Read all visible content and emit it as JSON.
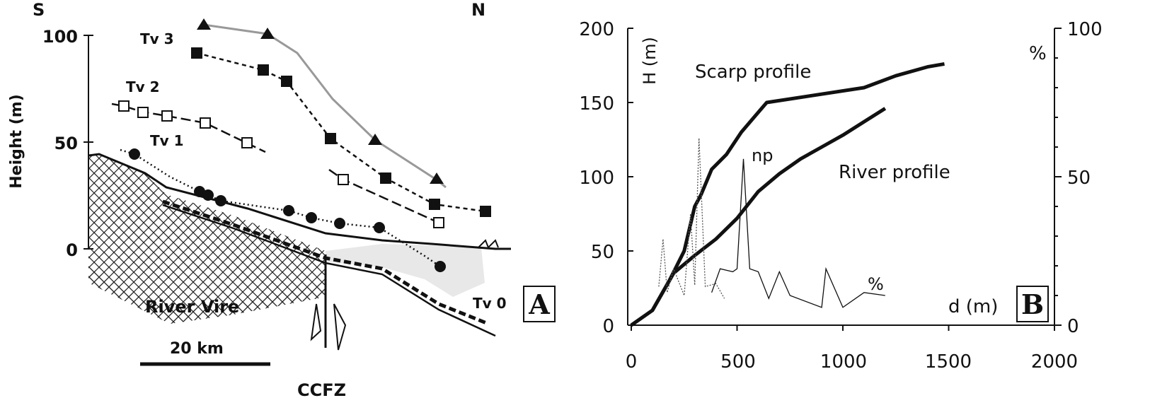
{
  "chart_data": [
    {
      "type": "line",
      "panel_label": "A",
      "ylabel": "Height (m)",
      "direction_left": "S",
      "direction_right": "N",
      "yticks": [
        "100",
        "50",
        "0"
      ],
      "ylim": [
        -35,
        110
      ],
      "annotations": {
        "river": "River Vire",
        "fault": "CCFZ",
        "scale_bar": "20 km"
      },
      "terrace_labels": [
        "Tv 3",
        "Tv 2",
        "Tv 1",
        "Tv 0"
      ],
      "series": [
        {
          "name": "Tv 3",
          "marker": "filled-square",
          "x": [
            0.27,
            0.37,
            0.4,
            0.46,
            0.54,
            0.61,
            0.68
          ],
          "y": [
            92,
            84,
            78,
            51,
            33,
            21,
            18
          ]
        },
        {
          "name": "Tv 2",
          "marker": "open-square",
          "x": [
            0.06,
            0.09,
            0.12,
            0.17,
            0.23
          ],
          "y": [
            67,
            64,
            62,
            59,
            50
          ]
        },
        {
          "name": "Tv 2",
          "marker": "open-square",
          "x": [
            0.46,
            0.49,
            0.62
          ],
          "y": [
            36,
            33,
            13
          ]
        },
        {
          "name": "Tv 1",
          "marker": "filled-circle",
          "x": [
            0.05,
            0.17,
            0.18,
            0.21,
            0.32,
            0.36,
            0.45,
            0.54
          ],
          "y": [
            45,
            27,
            25,
            23,
            18,
            15,
            10,
            -8
          ]
        },
        {
          "name": "",
          "marker": "filled-triangle",
          "x": [
            0.14,
            0.27,
            0.33,
            0.44,
            0.5
          ],
          "y": [
            106,
            101,
            93,
            50,
            33
          ]
        }
      ]
    },
    {
      "type": "line",
      "panel_label": "B",
      "ylabel_left": "H (m)",
      "ylabel_right": "%",
      "xlabel": "d (m)",
      "xlim": [
        0,
        2000
      ],
      "ylim": [
        0,
        200
      ],
      "ylim_right": [
        0,
        100
      ],
      "xticks": [
        "0",
        "500",
        "1000",
        "1500",
        "2000"
      ],
      "yticks": [
        "0",
        "50",
        "100",
        "150",
        "200"
      ],
      "yticks_right": [
        "0",
        "50",
        "100"
      ],
      "annotations": {
        "np": "np",
        "percent": "%"
      },
      "series": [
        {
          "name": "Scarp profile",
          "x": [
            0,
            100,
            180,
            250,
            300,
            330,
            380,
            450,
            520,
            580,
            640,
            1100,
            1250,
            1400,
            1480
          ],
          "y": [
            0,
            10,
            30,
            50,
            80,
            88,
            105,
            115,
            130,
            140,
            150,
            160,
            168,
            174,
            176
          ]
        },
        {
          "name": "River profile",
          "x": [
            0,
            100,
            200,
            300,
            400,
            500,
            600,
            700,
            800,
            900,
            1000,
            1100,
            1200
          ],
          "y": [
            0,
            10,
            35,
            47,
            58,
            72,
            90,
            102,
            112,
            120,
            128,
            137,
            146
          ]
        },
        {
          "name": "",
          "style": "dotted",
          "x": [
            130,
            150,
            170,
            200,
            250,
            280,
            300,
            320,
            350,
            400,
            440
          ],
          "y": [
            26,
            58,
            22,
            38,
            20,
            75,
            27,
            126,
            26,
            28,
            18
          ]
        },
        {
          "name": "",
          "style": "thin",
          "x": [
            380,
            420,
            480,
            500,
            530,
            560,
            600,
            650,
            700,
            750,
            900,
            920,
            1000,
            1100,
            1200
          ],
          "y": [
            22,
            38,
            36,
            38,
            112,
            38,
            36,
            18,
            36,
            20,
            12,
            38,
            12,
            22,
            20
          ]
        }
      ]
    }
  ]
}
